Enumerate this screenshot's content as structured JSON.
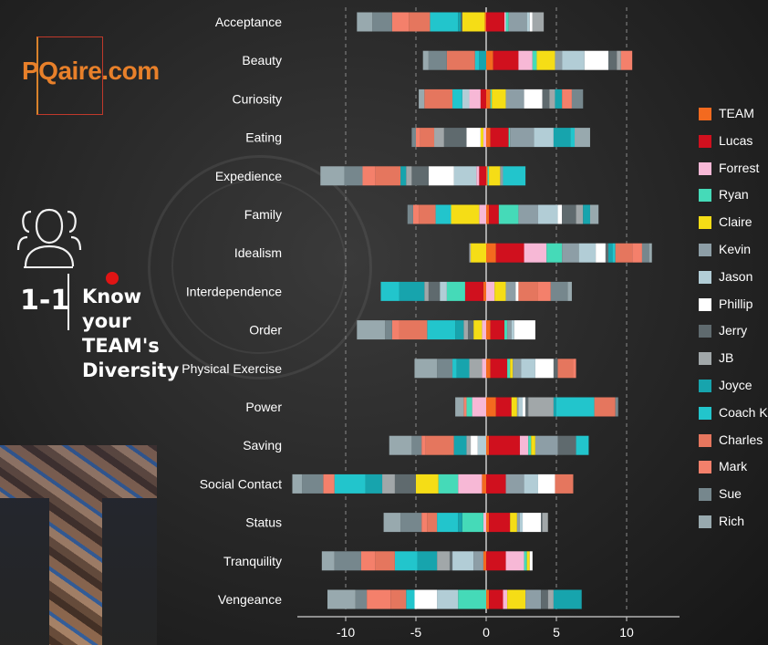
{
  "brand": {
    "logo_text": "PQaire.com"
  },
  "section": {
    "number": "1-1",
    "title": "Know your\nTEAM's\nDiversity"
  },
  "colors": {
    "background": "#262626",
    "logo_orange": "#e8802a",
    "accent_red": "#e01414"
  },
  "chart_data": {
    "type": "bar",
    "orientation": "horizontal",
    "stacked": "diverging",
    "categories": [
      "Acceptance",
      "Beauty",
      "Curiosity",
      "Eating",
      "Expedience",
      "Family",
      "Idealism",
      "Interdependence",
      "Order",
      "Physical Exercise",
      "Power",
      "Saving",
      "Social Contact",
      "Status",
      "Tranquility",
      "Vengeance"
    ],
    "xlim": [
      -13.5,
      13.5
    ],
    "xticks": [
      -10,
      -5,
      0,
      5,
      10
    ],
    "xtick_labels": [
      "-10",
      "-5",
      "0",
      "5",
      "10"
    ],
    "legend_position": "right",
    "series": [
      {
        "name": "TEAM",
        "color": "#f36a1f",
        "values": [
          -0.1,
          0.5,
          0.3,
          0.3,
          0.1,
          0.2,
          0.7,
          -0.2,
          0.3,
          0.3,
          0.7,
          0.2,
          -0.3,
          0.2,
          -0.2,
          0.2
        ]
      },
      {
        "name": "Lucas",
        "color": "#d0101e",
        "values": [
          1.3,
          1.8,
          -0.4,
          1.3,
          -0.5,
          0.7,
          2.0,
          -1.3,
          1.0,
          1.2,
          1.1,
          2.2,
          1.4,
          1.5,
          1.4,
          1.0
        ]
      },
      {
        "name": "Forrest",
        "color": "#f7b8d6",
        "values": [
          0.1,
          1.0,
          -0.8,
          -0.2,
          -0.2,
          -0.5,
          1.6,
          0.6,
          -0.3,
          -0.3,
          -1.0,
          0.6,
          -1.7,
          -0.2,
          1.3,
          0.3
        ]
      },
      {
        "name": "Ryan",
        "color": "#45dab8",
        "values": [
          0.2,
          0.3,
          0.1,
          0.1,
          0.1,
          1.4,
          1.1,
          -1.3,
          0.2,
          0.2,
          -0.4,
          0.2,
          -1.4,
          -1.5,
          0.2,
          -2.0
        ]
      },
      {
        "name": "Claire",
        "color": "#f5dd16",
        "values": [
          -1.6,
          1.3,
          1.0,
          -0.2,
          0.8,
          -2.0,
          -1.1,
          0.8,
          -0.6,
          0.2,
          0.4,
          0.3,
          -1.6,
          0.5,
          0.2,
          1.3
        ]
      },
      {
        "name": "Kevin",
        "color": "#8d9ea6",
        "values": [
          1.3,
          0.5,
          1.3,
          1.7,
          0.2,
          1.4,
          1.2,
          0.7,
          0.3,
          0.6,
          0.1,
          1.6,
          1.3,
          0.2,
          -0.7,
          1.1
        ]
      },
      {
        "name": "Jason",
        "color": "#b2cdd6",
        "values": [
          0.2,
          1.6,
          -0.5,
          1.4,
          -1.6,
          1.4,
          1.2,
          -0.5,
          0.2,
          1.0,
          0.3,
          -0.6,
          1.0,
          0.2,
          -1.5,
          -1.5
        ]
      },
      {
        "name": "Phillip",
        "color": "#ffffff",
        "values": [
          0.2,
          1.7,
          1.3,
          -1.0,
          -1.8,
          0.3,
          0.7,
          0.2,
          1.5,
          1.3,
          0.2,
          -0.5,
          1.2,
          1.3,
          0.2,
          -1.6
        ]
      },
      {
        "name": "Jerry",
        "color": "#5f6a6e",
        "values": [
          -0.1,
          0.6,
          0.5,
          -1.6,
          -1.2,
          1.0,
          0.2,
          -0.8,
          -0.4,
          0.3,
          0.2,
          1.3,
          -1.5,
          0.1,
          -0.2,
          0.5
        ]
      },
      {
        "name": "JB",
        "color": "#a1a7a9",
        "values": [
          0.8,
          0.3,
          0.4,
          -0.7,
          -0.4,
          0.5,
          -0.1,
          -0.3,
          -0.3,
          -0.9,
          1.8,
          -0.3,
          -0.9,
          0.4,
          -0.9,
          0.4
        ]
      },
      {
        "name": "Joyce",
        "color": "#17a4ad",
        "values": [
          -0.2,
          -0.5,
          0.5,
          1.2,
          -0.4,
          0.5,
          0.3,
          -1.8,
          -0.6,
          -0.9,
          0.2,
          -0.9,
          -1.2,
          -0.3,
          -1.4,
          2.0
        ]
      },
      {
        "name": "Coach K",
        "color": "#22c5cc",
        "values": [
          -2.0,
          -0.3,
          -0.7,
          0.3,
          1.6,
          -1.1,
          0.2,
          -1.3,
          -2.0,
          -0.3,
          2.7,
          0.9,
          -2.2,
          -1.5,
          -1.6,
          -0.6
        ]
      },
      {
        "name": "Charles",
        "color": "#e5765e",
        "values": [
          -1.5,
          -2.0,
          -2.0,
          -1.0,
          -1.8,
          -1.2,
          1.2,
          1.4,
          -2.0,
          1.1,
          1.5,
          -2.0,
          1.3,
          -0.7,
          -1.4,
          -1.1
        ]
      },
      {
        "name": "Mark",
        "color": "#f4806b",
        "values": [
          -1.2,
          0.8,
          0.7,
          -0.3,
          -0.9,
          -0.4,
          0.7,
          0.9,
          -0.5,
          0.2,
          -0.2,
          -0.3,
          -0.8,
          -0.4,
          -1.0,
          -1.7
        ]
      },
      {
        "name": "Sue",
        "color": "#76878d",
        "values": [
          -1.4,
          -1.3,
          0.8,
          -0.3,
          -1.3,
          -0.4,
          0.5,
          1.2,
          -0.5,
          -1.1,
          0.2,
          -0.7,
          -1.5,
          -1.5,
          -1.9,
          -0.8
        ]
      },
      {
        "name": "Rich",
        "color": "#98a9ae",
        "values": [
          -1.1,
          -0.4,
          -0.4,
          1.1,
          -1.7,
          0.6,
          0.2,
          0.3,
          -2.0,
          -1.6,
          -0.6,
          -1.6,
          -0.7,
          -1.2,
          -0.9,
          -2.0
        ]
      }
    ]
  }
}
